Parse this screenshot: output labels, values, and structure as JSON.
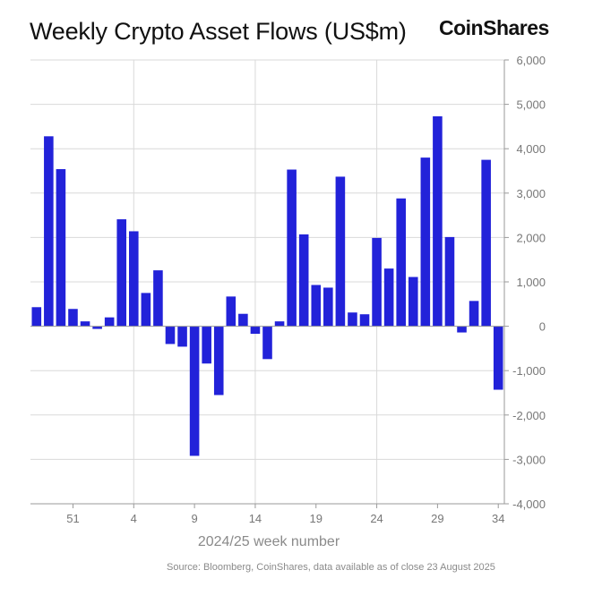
{
  "header": {
    "title": "Weekly Crypto Asset Flows (US$m)",
    "brand": "CoinShares"
  },
  "source": "Source: Bloomberg, CoinShares, data available as of close 23 August 2025",
  "colors": {
    "bar": "#2222d9",
    "grid": "#d9d9d9",
    "axis": "#9a9a9a"
  },
  "chart_data": {
    "type": "bar",
    "title": "Weekly Crypto Asset Flows (US$m)",
    "xlabel": "2024/25 week number",
    "ylabel": "",
    "ylim": [
      -4000,
      6000
    ],
    "yticks": [
      6000,
      5000,
      4000,
      3000,
      2000,
      1000,
      0,
      -1000,
      -2000,
      -3000,
      -4000
    ],
    "ytick_labels": [
      "6,000",
      "5,000",
      "4,000",
      "3,000",
      "2,000",
      "1,000",
      "0",
      "-1,000",
      "-2,000",
      "-3,000",
      "-4,000"
    ],
    "xtick_labels": [
      "51",
      "4",
      "9",
      "14",
      "19",
      "24",
      "29",
      "34"
    ],
    "xtick_week_index": [
      3,
      8,
      13,
      18,
      23,
      28,
      33,
      38
    ],
    "vertical_gridlines_at_index": [
      8,
      18,
      28
    ],
    "categories": [
      "48",
      "49",
      "50",
      "51",
      "52",
      "1",
      "2",
      "3",
      "4",
      "5",
      "6",
      "7",
      "8",
      "9",
      "10",
      "11",
      "12",
      "13",
      "14",
      "15",
      "16",
      "17",
      "18",
      "19",
      "20",
      "21",
      "22",
      "23",
      "24",
      "25",
      "26",
      "27",
      "28",
      "29",
      "30",
      "31",
      "32",
      "33",
      "34"
    ],
    "values": [
      430,
      4280,
      3540,
      390,
      110,
      -60,
      200,
      2410,
      2140,
      750,
      1260,
      -400,
      -460,
      -2920,
      -840,
      -1550,
      670,
      280,
      -170,
      -740,
      110,
      3530,
      2070,
      930,
      870,
      3370,
      310,
      270,
      1990,
      1300,
      2880,
      1110,
      3800,
      4730,
      2010,
      -140,
      570,
      3750,
      -1430
    ]
  }
}
